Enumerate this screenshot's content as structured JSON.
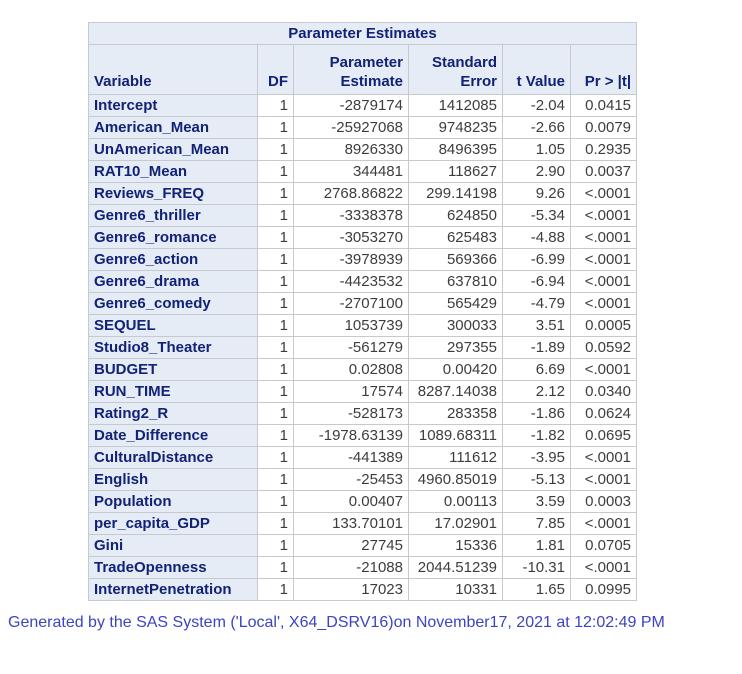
{
  "table": {
    "title": "Parameter Estimates",
    "headers": [
      "Variable",
      "DF",
      "Parameter Estimate",
      "Standard Error",
      "t Value",
      "Pr > |t|"
    ],
    "rows": [
      {
        "variable": "Intercept",
        "df": "1",
        "estimate": "-2879174",
        "std_error": "1412085",
        "t_value": "-2.04",
        "pr_t": "0.0415"
      },
      {
        "variable": "American_Mean",
        "df": "1",
        "estimate": "-25927068",
        "std_error": "9748235",
        "t_value": "-2.66",
        "pr_t": "0.0079"
      },
      {
        "variable": "UnAmerican_Mean",
        "df": "1",
        "estimate": "8926330",
        "std_error": "8496395",
        "t_value": "1.05",
        "pr_t": "0.2935"
      },
      {
        "variable": "RAT10_Mean",
        "df": "1",
        "estimate": "344481",
        "std_error": "118627",
        "t_value": "2.90",
        "pr_t": "0.0037"
      },
      {
        "variable": "Reviews_FREQ",
        "df": "1",
        "estimate": "2768.86822",
        "std_error": "299.14198",
        "t_value": "9.26",
        "pr_t": "<.0001"
      },
      {
        "variable": "Genre6_thriller",
        "df": "1",
        "estimate": "-3338378",
        "std_error": "624850",
        "t_value": "-5.34",
        "pr_t": "<.0001"
      },
      {
        "variable": "Genre6_romance",
        "df": "1",
        "estimate": "-3053270",
        "std_error": "625483",
        "t_value": "-4.88",
        "pr_t": "<.0001"
      },
      {
        "variable": "Genre6_action",
        "df": "1",
        "estimate": "-3978939",
        "std_error": "569366",
        "t_value": "-6.99",
        "pr_t": "<.0001"
      },
      {
        "variable": "Genre6_drama",
        "df": "1",
        "estimate": "-4423532",
        "std_error": "637810",
        "t_value": "-6.94",
        "pr_t": "<.0001"
      },
      {
        "variable": "Genre6_comedy",
        "df": "1",
        "estimate": "-2707100",
        "std_error": "565429",
        "t_value": "-4.79",
        "pr_t": "<.0001"
      },
      {
        "variable": "SEQUEL",
        "df": "1",
        "estimate": "1053739",
        "std_error": "300033",
        "t_value": "3.51",
        "pr_t": "0.0005"
      },
      {
        "variable": "Studio8_Theater",
        "df": "1",
        "estimate": "-561279",
        "std_error": "297355",
        "t_value": "-1.89",
        "pr_t": "0.0592"
      },
      {
        "variable": "BUDGET",
        "df": "1",
        "estimate": "0.02808",
        "std_error": "0.00420",
        "t_value": "6.69",
        "pr_t": "<.0001"
      },
      {
        "variable": "RUN_TIME",
        "df": "1",
        "estimate": "17574",
        "std_error": "8287.14038",
        "t_value": "2.12",
        "pr_t": "0.0340"
      },
      {
        "variable": "Rating2_R",
        "df": "1",
        "estimate": "-528173",
        "std_error": "283358",
        "t_value": "-1.86",
        "pr_t": "0.0624"
      },
      {
        "variable": "Date_Difference",
        "df": "1",
        "estimate": "-1978.63139",
        "std_error": "1089.68311",
        "t_value": "-1.82",
        "pr_t": "0.0695"
      },
      {
        "variable": "CulturalDistance",
        "df": "1",
        "estimate": "-441389",
        "std_error": "111612",
        "t_value": "-3.95",
        "pr_t": "<.0001"
      },
      {
        "variable": "English",
        "df": "1",
        "estimate": "-25453",
        "std_error": "4960.85019",
        "t_value": "-5.13",
        "pr_t": "<.0001"
      },
      {
        "variable": "Population",
        "df": "1",
        "estimate": "0.00407",
        "std_error": "0.00113",
        "t_value": "3.59",
        "pr_t": "0.0003"
      },
      {
        "variable": "per_capita_GDP",
        "df": "1",
        "estimate": "133.70101",
        "std_error": "17.02901",
        "t_value": "7.85",
        "pr_t": "<.0001"
      },
      {
        "variable": "Gini",
        "df": "1",
        "estimate": "27745",
        "std_error": "15336",
        "t_value": "1.81",
        "pr_t": "0.0705"
      },
      {
        "variable": "TradeOpenness",
        "df": "1",
        "estimate": "-21088",
        "std_error": "2044.51239",
        "t_value": "-10.31",
        "pr_t": "<.0001"
      },
      {
        "variable": "InternetPenetration",
        "df": "1",
        "estimate": "17023",
        "std_error": "10331",
        "t_value": "1.65",
        "pr_t": "0.0995"
      }
    ]
  },
  "footer": {
    "text": "Generated by the SAS System ('Local', X64_DSRV16)on November17, 2021 at 12:02:49 PM"
  },
  "colors": {
    "header_bg": "#e5ecf6",
    "header_text": "#112277",
    "data_text": "#3d3d3d",
    "border": "#c6cad0",
    "footer_text": "#3c44c3"
  }
}
